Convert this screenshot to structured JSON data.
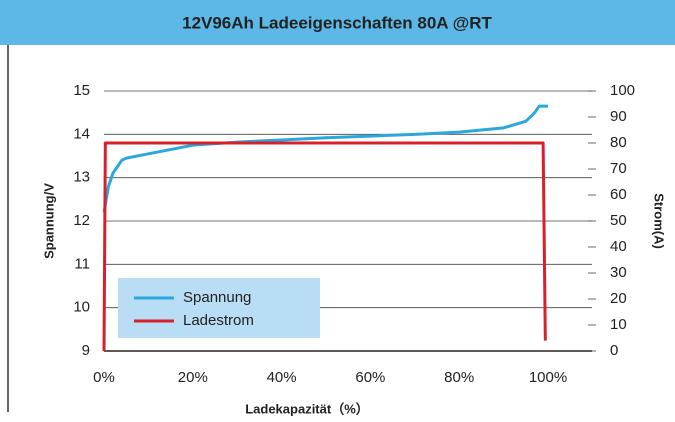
{
  "chart_data": {
    "type": "line",
    "title": "12V96Ah Ladeeigenschaften 80A @RT",
    "xlabel": "Ladekapazität（%）",
    "ylabel": "Spannung/V",
    "y2label": "Strom(A)",
    "series": [
      {
        "name": "Spannung",
        "color": "#2aa8dc",
        "axis": "y",
        "x": [
          0,
          1,
          2,
          4,
          5,
          10,
          20,
          30,
          40,
          50,
          60,
          70,
          80,
          90,
          95,
          97,
          98,
          100
        ],
        "values": [
          12.2,
          12.8,
          13.1,
          13.4,
          13.45,
          13.55,
          13.75,
          13.82,
          13.87,
          13.92,
          13.96,
          14.0,
          14.05,
          14.15,
          14.3,
          14.5,
          14.65,
          14.65
        ]
      },
      {
        "name": "Ladestrom",
        "color": "#d9202a",
        "axis": "y2",
        "x": [
          0,
          0.3,
          98.9,
          99.4
        ],
        "values": [
          0,
          80,
          80,
          4
        ]
      }
    ],
    "xlim": [
      0,
      100
    ],
    "xticks": [
      {
        "value": 0,
        "label": "0%"
      },
      {
        "value": 20,
        "label": "20%"
      },
      {
        "value": 40,
        "label": "40%"
      },
      {
        "value": 60,
        "label": "60%"
      },
      {
        "value": 80,
        "label": "80%"
      },
      {
        "value": 100,
        "label": "100%"
      }
    ],
    "ylim": [
      9,
      15
    ],
    "yticks": [
      9,
      10,
      11,
      12,
      13,
      14,
      15
    ],
    "y2lim": [
      0,
      100
    ],
    "y2ticks": [
      0,
      10,
      20,
      30,
      40,
      50,
      60,
      70,
      80,
      90,
      100
    ],
    "grid": true,
    "legend": "lower left"
  }
}
